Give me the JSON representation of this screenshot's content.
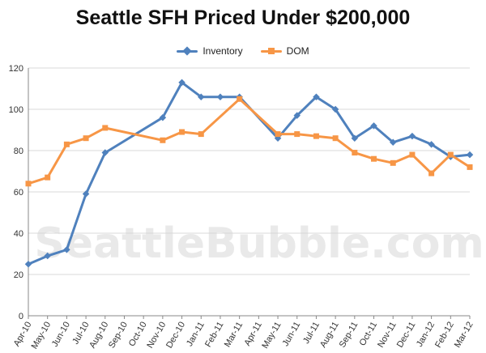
{
  "chart_data": {
    "type": "line",
    "title": "Seattle SFH Priced Under $200,000",
    "xlabel": "",
    "ylabel": "",
    "watermark": "SeattleBubble.com",
    "categories": [
      "Apr-10",
      "May-10",
      "Jun-10",
      "Jul-10",
      "Aug-10",
      "Sep-10",
      "Oct-10",
      "Nov-10",
      "Dec-10",
      "Jan-11",
      "Feb-11",
      "Mar-11",
      "Apr-11",
      "May-11",
      "Jun-11",
      "Jul-11",
      "Aug-11",
      "Sep-11",
      "Oct-11",
      "Nov-11",
      "Dec-11",
      "Jan-12",
      "Feb-12",
      "Mar-12"
    ],
    "ylim": [
      0,
      120
    ],
    "yticks": [
      0,
      20,
      40,
      60,
      80,
      100,
      120
    ],
    "grid": true,
    "legend_position": "top",
    "series": [
      {
        "name": "Inventory",
        "color": "#4f81bd",
        "marker": "diamond",
        "values": [
          25,
          29,
          32,
          59,
          79,
          null,
          null,
          96,
          113,
          106,
          106,
          106,
          null,
          86,
          97,
          106,
          100,
          86,
          92,
          84,
          87,
          83,
          77,
          78
        ]
      },
      {
        "name": "DOM",
        "color": "#f79646",
        "marker": "square",
        "values": [
          64,
          67,
          83,
          86,
          91,
          null,
          null,
          85,
          89,
          88,
          null,
          105,
          null,
          88,
          88,
          87,
          86,
          79,
          76,
          74,
          78,
          69,
          78,
          72
        ]
      }
    ]
  }
}
